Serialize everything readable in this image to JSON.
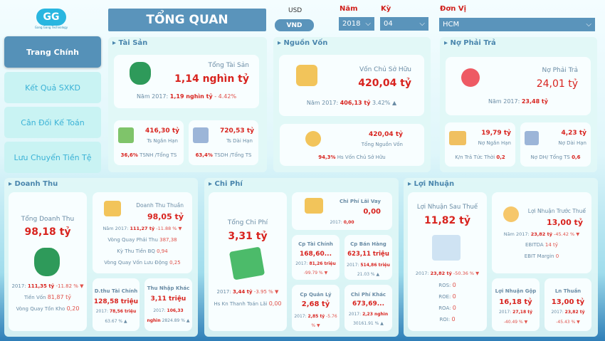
{
  "logo": {
    "text": "GG",
    "caption": "Gang Gang Technology"
  },
  "sidebar": {
    "items": [
      {
        "label": "Trang Chính",
        "active": true
      },
      {
        "label": "Kết Quả SXKD"
      },
      {
        "label": "Cân Đối Kế Toán"
      },
      {
        "label": "Lưu Chuyển Tiền Tệ"
      }
    ]
  },
  "header": {
    "title": "TỔNG QUAN",
    "currency_usd": "USD",
    "currency_vnd": "VND",
    "filters": {
      "year_label": "Năm",
      "year_value": "2018",
      "period_label": "Kỳ",
      "period_value": "04",
      "unit_label": "Đơn Vị",
      "unit_value": "HCM"
    }
  },
  "tai_san": {
    "title": "Tài Sản",
    "main_label": "Tổng Tài Sản",
    "main_value": "1,14 nghìn tỷ",
    "prev_label": "Năm 2017:",
    "prev_value": "1,19 nghìn tỷ",
    "change": "- 4.42%",
    "short": {
      "value": "416,30 tỷ",
      "label": "Ts Ngắn Hạn",
      "pct": "36,6%",
      "pct_label": "TSNH /Tổng TS"
    },
    "long": {
      "value": "720,53 tỷ",
      "label": "Ts Dài Hạn",
      "pct": "63,4%",
      "pct_label": "TSDH /Tổng TS"
    }
  },
  "nguon_von": {
    "title": "Nguồn Vốn",
    "main_label": "Vốn Chủ Sở Hữu",
    "main_value": "420,04 tỷ",
    "prev_label": "Năm 2017:",
    "prev_value": "406,13 tỷ",
    "change": "3.42% ▲",
    "total": {
      "value": "420,04 tỷ",
      "label": "Tổng Nguồn Vốn",
      "pct": "94,3%",
      "pct_label": "Hs Vốn Chủ Sở Hữu"
    }
  },
  "no_phai_tra": {
    "title": "Nợ Phải Trả",
    "main_label": "Nợ Phải Trả",
    "main_value": "24,01 tỷ",
    "prev_label": "Năm 2017:",
    "prev_value": "23,48 tỷ",
    "short": {
      "value": "19,79 tỷ",
      "label": "Nợ Ngắn Hạn",
      "ratio_label": "K/n Trả Tức Thời",
      "ratio": "0,2"
    },
    "long": {
      "value": "4,23 tỷ",
      "label": "Nợ Dài Hạn",
      "ratio_label": "Nợ DH/ Tổng TS",
      "ratio": "0,6"
    }
  },
  "doanh_thu": {
    "title": "Doanh Thu",
    "total_label": "Tổng Doanh Thu",
    "total_value": "98,18 tỷ",
    "prev_label": "2017:",
    "prev_value": "111,35 tỷ",
    "change": "-11.82 % ▼",
    "cost_label": "Tiền Vốn",
    "cost_value": "81,87 tỷ",
    "inv_label": "Vòng Quay Tồn Kho",
    "inv_value": "0,20",
    "net": {
      "label": "Doanh Thu Thuần",
      "value": "98,05 tỷ",
      "prev_label": "Năm 2017:",
      "prev_value": "111,27 tỷ",
      "change": "-11.88 % ▼",
      "r1_label": "Vòng Quay Phải Thu",
      "r1": "387,38",
      "r2_label": "Kỳ Thu Tiền BQ",
      "r2": "0,94",
      "r3_label": "Vòng Quay Vốn Lưu Động",
      "r3": "0,25"
    },
    "fin": {
      "label": "D.thu Tài Chính",
      "value": "128,58 triệu",
      "prev_label": "2017:",
      "prev_value": "78,56 triệu",
      "change": "63.67 % ▲"
    },
    "other": {
      "label": "Thu Nhập Khác",
      "value": "3,11 triệu",
      "prev_label": "2017:",
      "prev_value": "106,33 nghìn",
      "change": "2824.89 % ▲"
    }
  },
  "chi_phi": {
    "title": "Chi Phí",
    "total_label": "Tổng Chi Phí",
    "total_value": "3,31 tỷ",
    "prev_label": "2017:",
    "prev_value": "3,44 tỷ",
    "change": "-3.95 % ▼",
    "cov_label": "Hs Kn Thanh Toán Lãi",
    "cov_value": "0,00",
    "interest": {
      "label": "Chi Phí Lãi Vay",
      "value": "0,00",
      "prev_label": "2017:",
      "prev_value": "0,00"
    },
    "fin": {
      "label": "Cp Tài Chính",
      "value": "168,60...",
      "prev_label": "2017:",
      "prev_value": "81,26 triệu",
      "change": "-99.79 % ▼"
    },
    "sales": {
      "label": "Cp Bán Hàng",
      "value": "623,11 triệu",
      "prev_label": "2017:",
      "prev_value": "514,86 triệu",
      "change": "21.03 % ▲"
    },
    "admin": {
      "label": "Cp Quản Lý",
      "value": "2,68 tỷ",
      "prev_label": "2017:",
      "prev_value": "2,85 tỷ",
      "change": "-5.76 % ▼"
    },
    "other": {
      "label": "Chi Phí Khác",
      "value": "673,69...",
      "prev_label": "2017:",
      "prev_value": "2,23 nghìn",
      "change": "30161.91 % ▲"
    }
  },
  "loi_nhuan": {
    "title": "Lợi Nhuận",
    "after_label": "Lợi Nhuận Sau Thuế",
    "after_value": "11,82 tỷ",
    "prev_label": "2017:",
    "prev_value": "23,82 tỷ",
    "change": "-50.36 % ▼",
    "ratios": [
      {
        "label": "ROS:",
        "value": "0"
      },
      {
        "label": "ROE:",
        "value": "0"
      },
      {
        "label": "ROA:",
        "value": "0"
      },
      {
        "label": "ROI:",
        "value": "0"
      }
    ],
    "before": {
      "label": "Lợi Nhuận Trước Thuế",
      "value": "13,00 tỷ",
      "prev_label": "Năm 2017:",
      "prev_value": "23,82 tỷ",
      "change": "-45.42 % ▼",
      "ebitda_label": "EBITDA",
      "ebitda": "14 tỷ",
      "ebit_label": "EBIT Margin",
      "ebit": "0"
    },
    "gross": {
      "label": "Lợi Nhuận Gộp",
      "value": "16,18 tỷ",
      "prev_label": "2017:",
      "prev_value": "27,18 tỷ",
      "change": "-40.49 % ▼"
    },
    "net": {
      "label": "Ln Thuần",
      "value": "13,00 tỷ",
      "prev_label": "2017:",
      "prev_value": "23,82 tỷ",
      "change": "-45.43 % ▼"
    }
  },
  "colors": {
    "accent": "#5a94bb",
    "value_red": "#d8231e",
    "nav_inactive": "#c9f3f3",
    "nav_text": "#3ab2d6"
  }
}
